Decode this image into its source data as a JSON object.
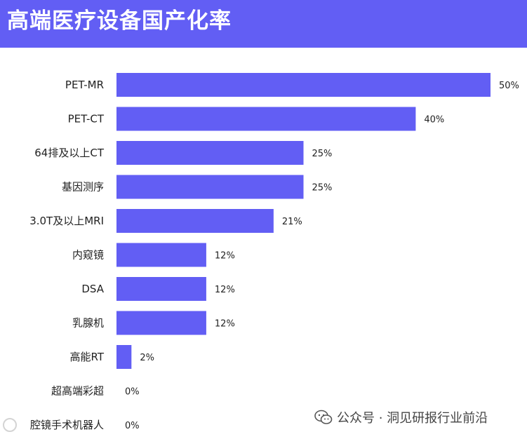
{
  "header": {
    "title": "高端医疗设备国产化率"
  },
  "colors": {
    "accent": "#625ef4",
    "bar": "#625ef4",
    "label": "#222222"
  },
  "chart_data": {
    "type": "bar",
    "orientation": "horizontal",
    "title": "高端医疗设备国产化率",
    "xlabel": "",
    "ylabel": "",
    "xlim": [
      0,
      50
    ],
    "grid": false,
    "categories": [
      "PET-MR",
      "PET-CT",
      "64排及以上CT",
      "基因测序",
      "3.0T及以上MRI",
      "内窥镜",
      "DSA",
      "乳腺机",
      "高能RT",
      "超高端彩超",
      "腔镜手术机器人"
    ],
    "values": [
      50,
      40,
      25,
      25,
      21,
      12,
      12,
      12,
      2,
      0,
      0
    ],
    "value_labels": [
      "50%",
      "40%",
      "25%",
      "25%",
      "21%",
      "12%",
      "12%",
      "12%",
      "2%",
      "0%",
      "0%"
    ]
  },
  "watermark": {
    "text": "公众号 · 洞见研报行业前沿",
    "icon": "wechat-icon"
  },
  "corner_logo": {
    "icon": "logo-icon"
  }
}
